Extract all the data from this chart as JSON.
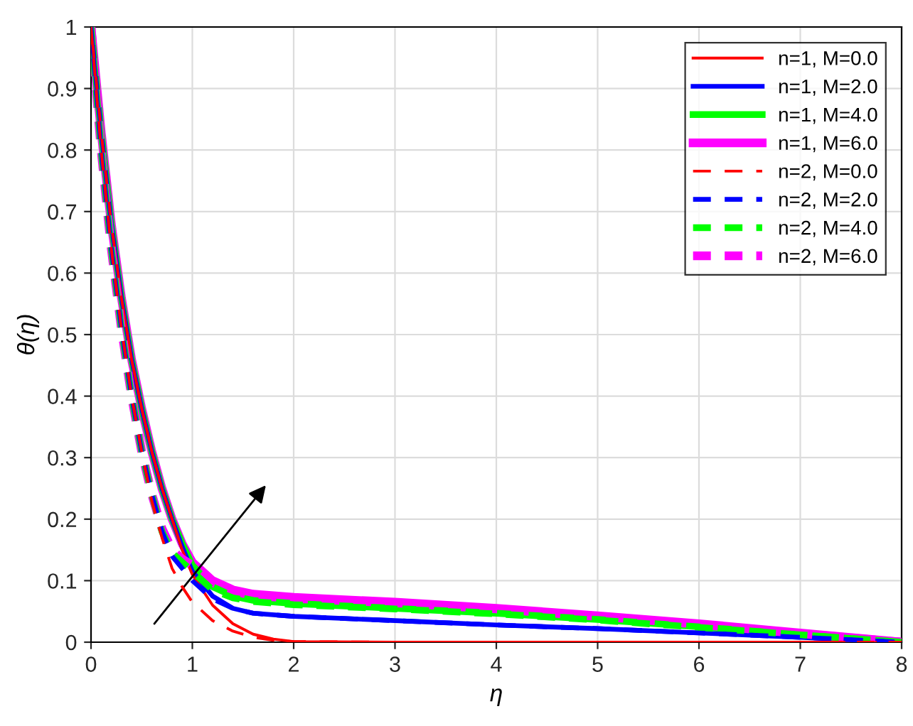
{
  "chart_data": {
    "type": "line",
    "xlabel": "η",
    "ylabel": "θ(η)",
    "xlim": [
      0,
      8
    ],
    "ylim": [
      0,
      1
    ],
    "xticks": [
      0,
      1,
      2,
      3,
      4,
      5,
      6,
      7,
      8
    ],
    "yticks": [
      0,
      0.1,
      0.2,
      0.3,
      0.4,
      0.5,
      0.6,
      0.7,
      0.8,
      0.9,
      1
    ],
    "grid": true,
    "legend": "top right",
    "series": [
      {
        "name": "n=1, M=0.0",
        "color": "#ff0000",
        "line_style": "solid",
        "x": [
          0,
          0.1,
          0.2,
          0.3,
          0.4,
          0.5,
          0.6,
          0.7,
          0.8,
          0.9,
          1.0,
          1.2,
          1.4,
          1.6,
          1.8,
          2,
          3,
          8
        ],
        "values": [
          1,
          0.83,
          0.68,
          0.56,
          0.46,
          0.38,
          0.31,
          0.25,
          0.2,
          0.15,
          0.11,
          0.06,
          0.03,
          0.013,
          0.005,
          0.001,
          0,
          0
        ]
      },
      {
        "name": "n=1, M=2.0",
        "color": "#0000ff",
        "line_style": "solid",
        "x": [
          0,
          0.1,
          0.2,
          0.3,
          0.4,
          0.5,
          0.6,
          0.7,
          0.8,
          0.9,
          1.0,
          1.2,
          1.4,
          1.6,
          2,
          3,
          4,
          5,
          6,
          7,
          8
        ],
        "values": [
          1,
          0.83,
          0.68,
          0.56,
          0.46,
          0.38,
          0.31,
          0.25,
          0.2,
          0.155,
          0.115,
          0.075,
          0.055,
          0.047,
          0.042,
          0.035,
          0.028,
          0.022,
          0.015,
          0.008,
          0
        ]
      },
      {
        "name": "n=1, M=4.0",
        "color": "#00ff00",
        "line_style": "solid",
        "x": [
          0,
          0.1,
          0.2,
          0.3,
          0.4,
          0.5,
          0.6,
          0.7,
          0.8,
          0.9,
          1.0,
          1.2,
          1.4,
          1.6,
          2,
          3,
          4,
          5,
          6,
          7,
          8
        ],
        "values": [
          1,
          0.83,
          0.68,
          0.56,
          0.46,
          0.38,
          0.31,
          0.25,
          0.2,
          0.16,
          0.125,
          0.09,
          0.075,
          0.068,
          0.063,
          0.055,
          0.047,
          0.037,
          0.025,
          0.012,
          0
        ]
      },
      {
        "name": "n=1, M=6.0",
        "color": "#ff00ff",
        "line_style": "solid",
        "x": [
          0,
          0.1,
          0.2,
          0.3,
          0.4,
          0.5,
          0.6,
          0.7,
          0.8,
          0.9,
          1.0,
          1.2,
          1.4,
          1.6,
          2,
          3,
          4,
          5,
          6,
          7,
          8
        ],
        "values": [
          1,
          0.83,
          0.68,
          0.56,
          0.46,
          0.38,
          0.31,
          0.25,
          0.2,
          0.16,
          0.13,
          0.1,
          0.085,
          0.078,
          0.073,
          0.065,
          0.055,
          0.043,
          0.03,
          0.015,
          0
        ]
      },
      {
        "name": "n=2, M=0.0",
        "color": "#ff0000",
        "line_style": "dashed",
        "x": [
          0,
          0.1,
          0.2,
          0.3,
          0.4,
          0.5,
          0.6,
          0.7,
          0.8,
          0.9,
          1.0,
          1.2,
          1.4,
          1.6,
          1.8,
          2,
          3,
          8
        ],
        "values": [
          1,
          0.8,
          0.64,
          0.51,
          0.4,
          0.31,
          0.23,
          0.17,
          0.12,
          0.09,
          0.065,
          0.035,
          0.018,
          0.008,
          0.003,
          0.001,
          0,
          0
        ]
      },
      {
        "name": "n=2, M=2.0",
        "color": "#0000ff",
        "line_style": "dashed",
        "x": [
          0,
          0.1,
          0.2,
          0.3,
          0.4,
          0.5,
          0.6,
          0.7,
          0.8,
          0.9,
          1.0,
          1.2,
          1.4,
          1.6,
          2,
          3,
          4,
          5,
          6,
          7,
          8
        ],
        "values": [
          1,
          0.8,
          0.64,
          0.51,
          0.4,
          0.31,
          0.24,
          0.18,
          0.14,
          0.12,
          0.1,
          0.07,
          0.055,
          0.047,
          0.042,
          0.035,
          0.028,
          0.022,
          0.015,
          0.008,
          0
        ]
      },
      {
        "name": "n=2, M=4.0",
        "color": "#00ff00",
        "line_style": "dashed",
        "x": [
          0,
          0.1,
          0.2,
          0.3,
          0.4,
          0.5,
          0.6,
          0.7,
          0.8,
          0.9,
          1.0,
          1.2,
          1.4,
          1.6,
          2,
          3,
          4,
          5,
          6,
          7,
          8
        ],
        "values": [
          1,
          0.8,
          0.64,
          0.51,
          0.4,
          0.31,
          0.24,
          0.18,
          0.145,
          0.13,
          0.115,
          0.085,
          0.072,
          0.066,
          0.061,
          0.054,
          0.046,
          0.036,
          0.024,
          0.012,
          0
        ]
      },
      {
        "name": "n=2, M=6.0",
        "color": "#ff00ff",
        "line_style": "dashed",
        "x": [
          0,
          0.1,
          0.2,
          0.3,
          0.4,
          0.5,
          0.6,
          0.7,
          0.8,
          0.9,
          1.0,
          1.2,
          1.4,
          1.6,
          2,
          3,
          4,
          5,
          6,
          7,
          8
        ],
        "values": [
          1,
          0.8,
          0.64,
          0.51,
          0.4,
          0.31,
          0.24,
          0.185,
          0.15,
          0.135,
          0.125,
          0.097,
          0.083,
          0.076,
          0.071,
          0.064,
          0.054,
          0.042,
          0.029,
          0.014,
          0
        ]
      }
    ]
  }
}
